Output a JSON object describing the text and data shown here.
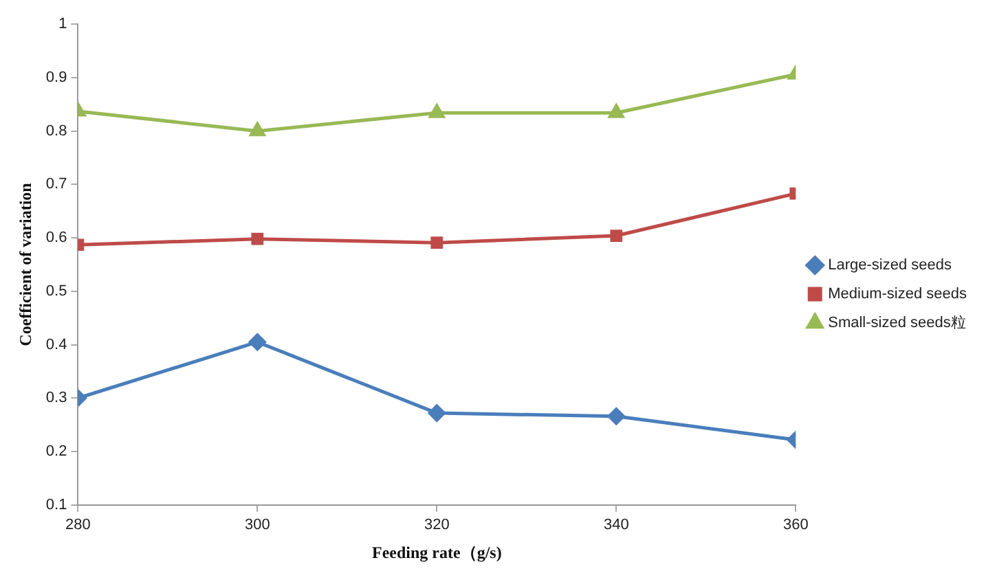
{
  "chart_data": {
    "type": "line",
    "xlabel": "Feeding rate（g/s)",
    "ylabel": "Coefficient of variation",
    "x": [
      280,
      300,
      320,
      340,
      360
    ],
    "xlim": [
      280,
      360
    ],
    "xticks": [
      280,
      300,
      320,
      340,
      360
    ],
    "ylim": [
      0.1,
      1
    ],
    "yticks": [
      0.1,
      0.2,
      0.3,
      0.4,
      0.5,
      0.6,
      0.7,
      0.8,
      0.9,
      1
    ],
    "grid": false,
    "legend": "right",
    "line_style": "solid",
    "series": [
      {
        "name": "Large-sized seeds",
        "color": "#4a7ebb",
        "marker": "diamond",
        "values": [
          0.3,
          0.405,
          0.272,
          0.266,
          0.222
        ]
      },
      {
        "name": "Medium-sized seeds",
        "color": "#be4b48",
        "marker": "square",
        "values": [
          0.587,
          0.598,
          0.591,
          0.604,
          0.683
        ]
      },
      {
        "name": "Small-sized seeds粒",
        "color": "#98b954",
        "marker": "triangle",
        "values": [
          0.837,
          0.8,
          0.834,
          0.834,
          0.906
        ]
      }
    ]
  }
}
